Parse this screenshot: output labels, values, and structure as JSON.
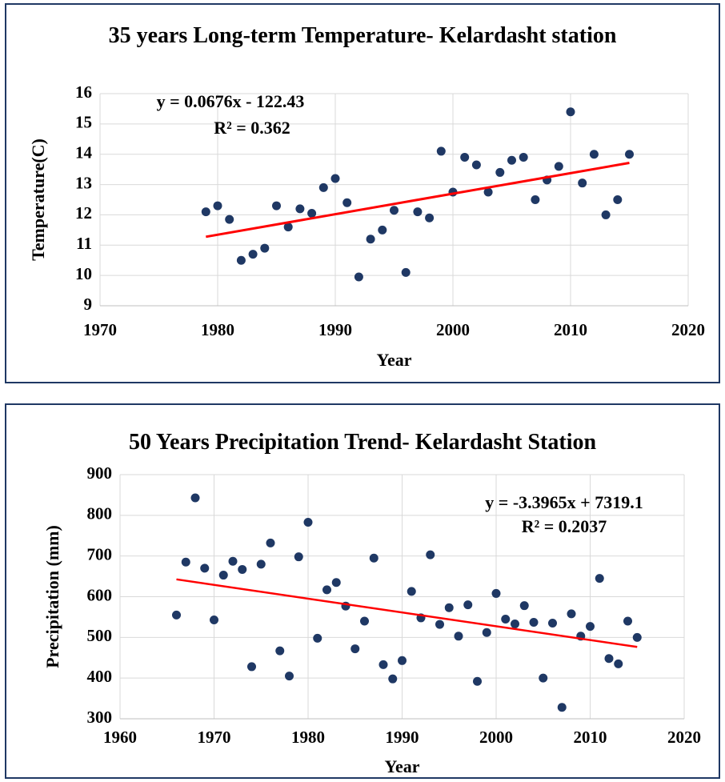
{
  "chart_data": [
    {
      "type": "line",
      "title": "35 years Long-term Temperature- Kelardasht station",
      "x_label": "Year",
      "y_label": "Temperature(C)",
      "x": [
        1979,
        1980,
        1981,
        1982,
        1983,
        1984,
        1985,
        1986,
        1987,
        1988,
        1989,
        1990,
        1991,
        1992,
        1993,
        1994,
        1995,
        1996,
        1997,
        1998,
        1999,
        2000,
        2001,
        2002,
        2003,
        2004,
        2005,
        2006,
        2007,
        2008,
        2009,
        2010,
        2011,
        2012,
        2013,
        2014,
        2015
      ],
      "series": [
        {
          "color": "#1f3864",
          "values": [
            12.1,
            12.3,
            11.85,
            10.5,
            10.7,
            10.9,
            12.3,
            11.6,
            12.2,
            12.05,
            12.9,
            13.2,
            12.4,
            9.95,
            11.2,
            11.5,
            12.15,
            10.1,
            12.1,
            11.9,
            14.1,
            12.75,
            13.9,
            13.65,
            12.75,
            13.4,
            13.8,
            13.9,
            12.5,
            13.15,
            13.6,
            15.4,
            13.05,
            14.0,
            12.0,
            12.5,
            14.0
          ]
        }
      ],
      "trendline": {
        "color": "#ff0000",
        "equation": "y = 0.0676x - 122.43",
        "r2": "R² = 0.362"
      },
      "xlim": [
        1970,
        2020
      ],
      "xticks": [
        1970,
        1980,
        1990,
        2000,
        2010,
        2020
      ],
      "ylim": [
        9,
        16
      ],
      "yticks": [
        9,
        10,
        11,
        12,
        13,
        14,
        15,
        16
      ],
      "grid": true
    },
    {
      "type": "line",
      "title": "50 Years Precipitation Trend- Kelardasht Station",
      "x_label": "Year",
      "y_label": "Precipitation (mm)",
      "x": [
        1966,
        1967,
        1968,
        1969,
        1970,
        1971,
        1972,
        1973,
        1974,
        1975,
        1976,
        1977,
        1978,
        1979,
        1980,
        1981,
        1982,
        1983,
        1984,
        1985,
        1986,
        1987,
        1988,
        1989,
        1990,
        1991,
        1992,
        1993,
        1994,
        1995,
        1996,
        1997,
        1998,
        1999,
        2000,
        2001,
        2002,
        2003,
        2004,
        2005,
        2006,
        2007,
        2008,
        2009,
        2010,
        2011,
        2012,
        2013,
        2014,
        2015
      ],
      "series": [
        {
          "color": "#1f3864",
          "values": [
            555,
            685,
            843,
            670,
            543,
            653,
            687,
            667,
            428,
            680,
            732,
            467,
            405,
            698,
            783,
            498,
            617,
            635,
            577,
            472,
            540,
            695,
            433,
            398,
            443,
            613,
            548,
            703,
            532,
            573,
            503,
            580,
            392,
            512,
            608,
            545,
            533,
            578,
            537,
            400,
            535,
            328,
            558,
            503,
            527,
            645,
            448,
            435,
            540,
            500
          ]
        }
      ],
      "trendline": {
        "color": "#ff0000",
        "equation": "y = -3.3965x + 7319.1",
        "r2": "R² = 0.2037"
      },
      "xlim": [
        1960,
        2020
      ],
      "xticks": [
        1960,
        1970,
        1980,
        1990,
        2000,
        2010,
        2020
      ],
      "ylim": [
        300,
        900
      ],
      "yticks": [
        300,
        400,
        500,
        600,
        700,
        800,
        900
      ],
      "grid": true
    }
  ]
}
